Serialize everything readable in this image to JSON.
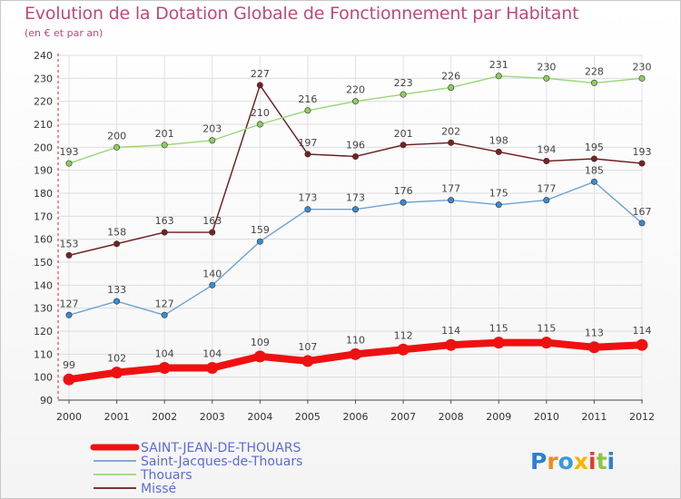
{
  "chart_data": {
    "type": "line",
    "title": "Evolution de la Dotation Globale de Fonctionnement par Habitant",
    "subtitle": "(en € et par an)",
    "x": [
      2000,
      2001,
      2002,
      2003,
      2004,
      2005,
      2006,
      2007,
      2008,
      2009,
      2010,
      2011,
      2012
    ],
    "x_tick_labels": [
      "2000",
      "2001",
      "2002",
      "2003",
      "2004",
      "2005",
      "2006",
      "2007",
      "2008",
      "2009",
      "2010",
      "2011",
      "2012"
    ],
    "ylim": [
      90,
      240
    ],
    "y_ticks": [
      90,
      100,
      110,
      120,
      130,
      140,
      150,
      160,
      170,
      180,
      190,
      200,
      210,
      220,
      230,
      240
    ],
    "grid": true,
    "legend_position": "bottom-left",
    "series": [
      {
        "name": "Missé",
        "color": "#6a1a1a",
        "marker": "#7a2020",
        "values": [
          153,
          158,
          163,
          163,
          227,
          197,
          196,
          201,
          202,
          198,
          194,
          195,
          193
        ]
      },
      {
        "name": "Thouars",
        "color": "#98d878",
        "marker": "#8ccd5e",
        "values": [
          193,
          200,
          201,
          203,
          210,
          216,
          220,
          223,
          226,
          231,
          230,
          228,
          230
        ]
      },
      {
        "name": "Saint-Jacques-de-Thouars",
        "color": "#6fa2d6",
        "marker": "#3a8bd0",
        "values": [
          127,
          133,
          127,
          140,
          159,
          173,
          173,
          176,
          177,
          175,
          177,
          185,
          167
        ]
      },
      {
        "name": "SAINT-JEAN-DE-THOUARS",
        "color": "#ee1111",
        "marker": "#ee1111",
        "values": [
          99,
          102,
          104,
          104,
          109,
          107,
          110,
          112,
          114,
          115,
          115,
          113,
          114
        ]
      }
    ],
    "legend_order": [
      "SAINT-JEAN-DE-THOUARS",
      "Saint-Jacques-de-Thouars",
      "Thouars",
      "Missé"
    ]
  },
  "logo": {
    "text": "Proxiti",
    "letters": [
      "P",
      "r",
      "o",
      "x",
      "i",
      "t",
      "i"
    ],
    "colors": [
      "#2f7fcf",
      "#f08a1c",
      "#3a9ad9",
      "#f5b400",
      "#e03c31",
      "#8cc63f",
      "#2f7fcf"
    ]
  }
}
